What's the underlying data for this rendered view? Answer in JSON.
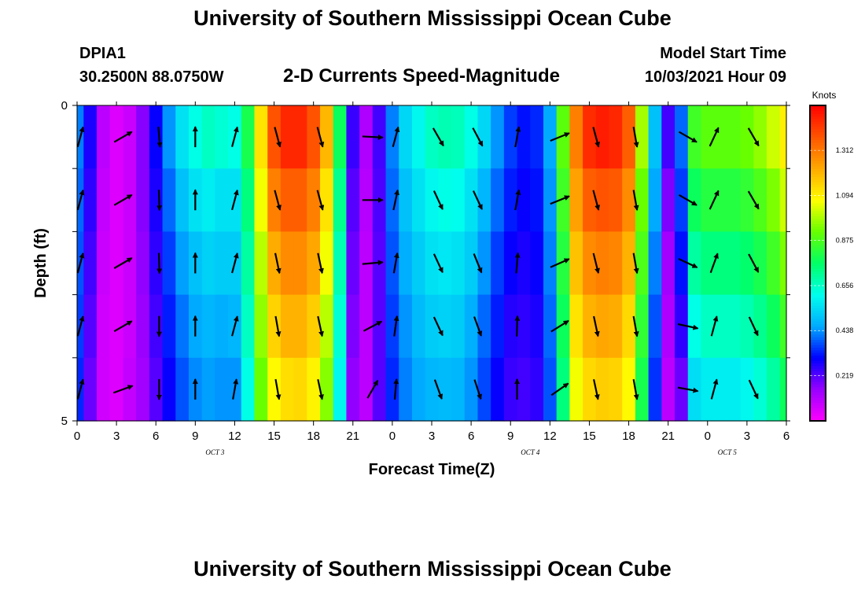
{
  "header": {
    "title": "University of Southern Mississippi Ocean Cube",
    "station_name": "DPIA1",
    "station_coords": "30.2500N  88.0750W",
    "plot_title": "2-D Currents Speed-Magnitude",
    "model_start_label": "Model Start Time",
    "model_start_value": "10/03/2021 Hour 09"
  },
  "footer": {
    "title": "University of Southern Mississippi Ocean Cube"
  },
  "chart_data": {
    "type": "heatmap",
    "xlabel": "Forecast Time(Z)",
    "ylabel": "Depth (ft)",
    "x_tick_labels": [
      "0",
      "3",
      "6",
      "9",
      "12",
      "15",
      "18",
      "21",
      "0",
      "3",
      "6",
      "9",
      "12",
      "15",
      "18",
      "21",
      "0",
      "3",
      "6"
    ],
    "date_labels": [
      {
        "label": "OCT 3",
        "at_tick": 3.5
      },
      {
        "label": "OCT 4",
        "at_tick": 11.5
      },
      {
        "label": "OCT 5",
        "at_tick": 16.5
      }
    ],
    "y_tick_labels": [
      "0",
      "5"
    ],
    "ylim": [
      0,
      5
    ],
    "depth_levels": 5,
    "colorbar": {
      "title": "Knots",
      "ticks": [
        0.219,
        0.438,
        0.656,
        0.875,
        1.094,
        1.312
      ],
      "range": [
        0.0,
        1.53
      ],
      "colors": [
        "#ff00ff",
        "#9900ff",
        "#0000ff",
        "#00aaff",
        "#00ffee",
        "#00ff66",
        "#66ff00",
        "#ffff00",
        "#ffaa00",
        "#ff5500",
        "#ff0000"
      ]
    },
    "time_points": [
      {
        "hour": 0,
        "speed": [
          0.42,
          0.4,
          0.38,
          0.36,
          0.34
        ]
      },
      {
        "hour": 1,
        "speed": [
          0.28,
          0.26,
          0.24,
          0.22,
          0.2
        ]
      },
      {
        "hour": 2,
        "speed": [
          0.1,
          0.09,
          0.08,
          0.07,
          0.07
        ]
      },
      {
        "hour": 3,
        "speed": [
          0.05,
          0.05,
          0.05,
          0.05,
          0.05
        ]
      },
      {
        "hour": 4,
        "speed": [
          0.08,
          0.08,
          0.08,
          0.08,
          0.09
        ]
      },
      {
        "hour": 5,
        "speed": [
          0.17,
          0.17,
          0.16,
          0.15,
          0.14
        ]
      },
      {
        "hour": 6,
        "speed": [
          0.3,
          0.28,
          0.26,
          0.24,
          0.22
        ]
      },
      {
        "hour": 7,
        "speed": [
          0.44,
          0.4,
          0.36,
          0.33,
          0.3
        ]
      },
      {
        "hour": 8,
        "speed": [
          0.56,
          0.5,
          0.45,
          0.41,
          0.38
        ]
      },
      {
        "hour": 9,
        "speed": [
          0.62,
          0.56,
          0.5,
          0.46,
          0.43
        ]
      },
      {
        "hour": 10,
        "speed": [
          0.66,
          0.58,
          0.53,
          0.48,
          0.45
        ]
      },
      {
        "hour": 11,
        "speed": [
          0.64,
          0.56,
          0.52,
          0.47,
          0.44
        ]
      },
      {
        "hour": 12,
        "speed": [
          0.62,
          0.56,
          0.52,
          0.48,
          0.44
        ]
      },
      {
        "hour": 13,
        "speed": [
          0.8,
          0.74,
          0.7,
          0.66,
          0.62
        ]
      },
      {
        "hour": 14,
        "speed": [
          1.12,
          1.06,
          1.0,
          0.96,
          0.92
        ]
      },
      {
        "hour": 15,
        "speed": [
          1.38,
          1.3,
          1.22,
          1.15,
          1.08
        ]
      },
      {
        "hour": 16,
        "speed": [
          1.46,
          1.36,
          1.28,
          1.21,
          1.13
        ]
      },
      {
        "hour": 17,
        "speed": [
          1.46,
          1.36,
          1.28,
          1.21,
          1.14
        ]
      },
      {
        "hour": 18,
        "speed": [
          1.38,
          1.3,
          1.23,
          1.16,
          1.09
        ]
      },
      {
        "hour": 19,
        "speed": [
          1.2,
          1.12,
          1.06,
          1.0,
          0.95
        ]
      },
      {
        "hour": 20,
        "speed": [
          0.78,
          0.72,
          0.68,
          0.64,
          0.6
        ]
      },
      {
        "hour": 21,
        "speed": [
          0.25,
          0.22,
          0.2,
          0.18,
          0.16
        ]
      },
      {
        "hour": 22,
        "speed": [
          0.12,
          0.11,
          0.1,
          0.1,
          0.1
        ]
      },
      {
        "hour": 23,
        "speed": [
          0.24,
          0.23,
          0.22,
          0.22,
          0.22
        ]
      },
      {
        "hour": 24,
        "speed": [
          0.42,
          0.4,
          0.38,
          0.36,
          0.34
        ]
      },
      {
        "hour": 25,
        "speed": [
          0.54,
          0.5,
          0.47,
          0.44,
          0.42
        ]
      },
      {
        "hour": 26,
        "speed": [
          0.6,
          0.56,
          0.52,
          0.49,
          0.46
        ]
      },
      {
        "hour": 27,
        "speed": [
          0.66,
          0.6,
          0.56,
          0.52,
          0.48
        ]
      },
      {
        "hour": 28,
        "speed": [
          0.68,
          0.62,
          0.57,
          0.53,
          0.49
        ]
      },
      {
        "hour": 29,
        "speed": [
          0.67,
          0.61,
          0.56,
          0.52,
          0.48
        ]
      },
      {
        "hour": 30,
        "speed": [
          0.62,
          0.56,
          0.52,
          0.47,
          0.44
        ]
      },
      {
        "hour": 31,
        "speed": [
          0.54,
          0.48,
          0.44,
          0.4,
          0.37
        ]
      },
      {
        "hour": 32,
        "speed": [
          0.44,
          0.4,
          0.36,
          0.33,
          0.3
        ]
      },
      {
        "hour": 33,
        "speed": [
          0.36,
          0.33,
          0.3,
          0.27,
          0.25
        ]
      },
      {
        "hour": 34,
        "speed": [
          0.32,
          0.3,
          0.28,
          0.26,
          0.24
        ]
      },
      {
        "hour": 35,
        "speed": [
          0.34,
          0.32,
          0.3,
          0.28,
          0.26
        ]
      },
      {
        "hour": 36,
        "speed": [
          0.46,
          0.44,
          0.42,
          0.4,
          0.38
        ]
      },
      {
        "hour": 37,
        "speed": [
          0.9,
          0.86,
          0.82,
          0.78,
          0.74
        ]
      },
      {
        "hour": 38,
        "speed": [
          1.3,
          1.24,
          1.18,
          1.12,
          1.06
        ]
      },
      {
        "hour": 39,
        "speed": [
          1.45,
          1.36,
          1.28,
          1.21,
          1.14
        ]
      },
      {
        "hour": 40,
        "speed": [
          1.48,
          1.38,
          1.3,
          1.23,
          1.16
        ]
      },
      {
        "hour": 41,
        "speed": [
          1.46,
          1.37,
          1.29,
          1.22,
          1.15
        ]
      },
      {
        "hour": 42,
        "speed": [
          1.36,
          1.28,
          1.21,
          1.14,
          1.08
        ]
      },
      {
        "hour": 43,
        "speed": [
          0.98,
          0.92,
          0.88,
          0.84,
          0.8
        ]
      },
      {
        "hour": 44,
        "speed": [
          0.5,
          0.46,
          0.42,
          0.38,
          0.35
        ]
      },
      {
        "hour": 45,
        "speed": [
          0.24,
          0.18,
          0.14,
          0.12,
          0.1
        ]
      },
      {
        "hour": 46,
        "speed": [
          0.4,
          0.36,
          0.32,
          0.26,
          0.2
        ]
      },
      {
        "hour": 47,
        "speed": [
          0.86,
          0.78,
          0.7,
          0.62,
          0.55
        ]
      },
      {
        "hour": 48,
        "speed": [
          0.9,
          0.82,
          0.74,
          0.66,
          0.58
        ]
      },
      {
        "hour": 49,
        "speed": [
          0.9,
          0.82,
          0.74,
          0.66,
          0.58
        ]
      },
      {
        "hour": 50,
        "speed": [
          0.9,
          0.82,
          0.74,
          0.66,
          0.58
        ]
      },
      {
        "hour": 51,
        "speed": [
          0.92,
          0.84,
          0.76,
          0.68,
          0.6
        ]
      },
      {
        "hour": 52,
        "speed": [
          0.96,
          0.88,
          0.8,
          0.72,
          0.64
        ]
      },
      {
        "hour": 53,
        "speed": [
          1.02,
          0.94,
          0.86,
          0.78,
          0.7
        ]
      },
      {
        "hour": 54,
        "speed": [
          1.1,
          1.02,
          0.94,
          0.86,
          0.78
        ]
      }
    ],
    "arrows": [
      {
        "hour": 0.25,
        "angle_deg": [
          75,
          75,
          75,
          75,
          75
        ]
      },
      {
        "hour": 3.5,
        "angle_deg": [
          30,
          30,
          30,
          30,
          20
        ]
      },
      {
        "hour": 6.25,
        "angle_deg": [
          -85,
          -88,
          -88,
          -90,
          -90
        ]
      },
      {
        "hour": 9,
        "angle_deg": [
          90,
          90,
          90,
          90,
          90
        ]
      },
      {
        "hour": 12,
        "angle_deg": [
          75,
          75,
          75,
          75,
          80
        ]
      },
      {
        "hour": 15.25,
        "angle_deg": [
          -75,
          -75,
          -78,
          -80,
          -80
        ]
      },
      {
        "hour": 18.5,
        "angle_deg": [
          -75,
          -75,
          -78,
          -78,
          -78
        ]
      },
      {
        "hour": 22.5,
        "angle_deg": [
          -3,
          0,
          5,
          28,
          60
        ]
      },
      {
        "hour": 24.25,
        "angle_deg": [
          75,
          78,
          80,
          82,
          85
        ]
      },
      {
        "hour": 27.5,
        "angle_deg": [
          -60,
          -65,
          -65,
          -65,
          -70
        ]
      },
      {
        "hour": 30.5,
        "angle_deg": [
          -62,
          -65,
          -68,
          -70,
          -72
        ]
      },
      {
        "hour": 33.5,
        "angle_deg": [
          80,
          80,
          85,
          88,
          90
        ]
      },
      {
        "hour": 36.75,
        "angle_deg": [
          22,
          22,
          24,
          32,
          35
        ]
      },
      {
        "hour": 39.5,
        "angle_deg": [
          -75,
          -75,
          -76,
          -78,
          -78
        ]
      },
      {
        "hour": 42.5,
        "angle_deg": [
          -80,
          -80,
          -80,
          -80,
          -80
        ]
      },
      {
        "hour": 46.5,
        "angle_deg": [
          -30,
          -30,
          -25,
          -12,
          -10
        ]
      },
      {
        "hour": 48.5,
        "angle_deg": [
          65,
          65,
          70,
          75,
          75
        ]
      },
      {
        "hour": 51.5,
        "angle_deg": [
          -60,
          -60,
          -62,
          -65,
          -65
        ]
      }
    ]
  }
}
